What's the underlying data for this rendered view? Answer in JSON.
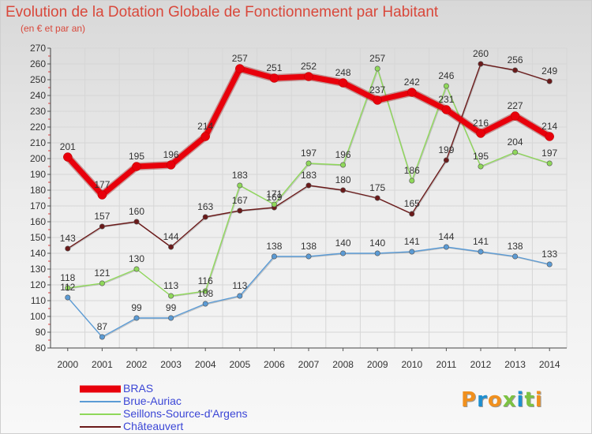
{
  "chart_data": {
    "type": "line",
    "title": "Evolution de la Dotation Globale de Fonctionnement par Habitant",
    "subtitle": "(en € et par an)",
    "xlabel": "",
    "ylabel": "",
    "x": [
      "2000",
      "2001",
      "2002",
      "2003",
      "2004",
      "2005",
      "2006",
      "2007",
      "2008",
      "2009",
      "2010",
      "2011",
      "2012",
      "2013",
      "2014"
    ],
    "ylim": [
      80,
      270
    ],
    "ytick_step": 10,
    "yticks": [
      "80",
      "90",
      "100",
      "110",
      "120",
      "130",
      "140",
      "150",
      "160",
      "170",
      "180",
      "190",
      "200",
      "210",
      "220",
      "230",
      "240",
      "250",
      "260",
      "270"
    ],
    "grid": true,
    "legend_position": "bottom-left",
    "series": [
      {
        "name": "Châteauvert",
        "color": "#6b1a1a",
        "values": [
          143,
          157,
          160,
          144,
          163,
          167,
          169,
          183,
          180,
          175,
          165,
          199,
          260,
          256,
          249
        ]
      },
      {
        "name": "Seillons-Source-d'Argens",
        "color": "#8fd85a",
        "values": [
          118,
          121,
          130,
          113,
          116,
          183,
          171,
          197,
          196,
          257,
          186,
          246,
          195,
          204,
          197
        ]
      },
      {
        "name": "Brue-Auriac",
        "color": "#5b9bd5",
        "values": [
          112,
          87,
          99,
          99,
          108,
          113,
          138,
          138,
          140,
          140,
          141,
          144,
          141,
          138,
          133
        ]
      },
      {
        "name": "BRAS",
        "color": "#e8000b",
        "values": [
          201,
          177,
          195,
          196,
          214,
          257,
          251,
          252,
          248,
          237,
          242,
          231,
          216,
          227,
          214
        ]
      }
    ],
    "legend": [
      "BRAS",
      "Brue-Auriac",
      "Seillons-Source-d'Argens",
      "Châteauvert"
    ]
  },
  "logo": {
    "text": "Proxiti",
    "colors": [
      "#f0901e",
      "#1e8fd0",
      "#f0901e",
      "#7cc242",
      "#1e8fd0",
      "#7cc242",
      "#f0901e"
    ]
  }
}
